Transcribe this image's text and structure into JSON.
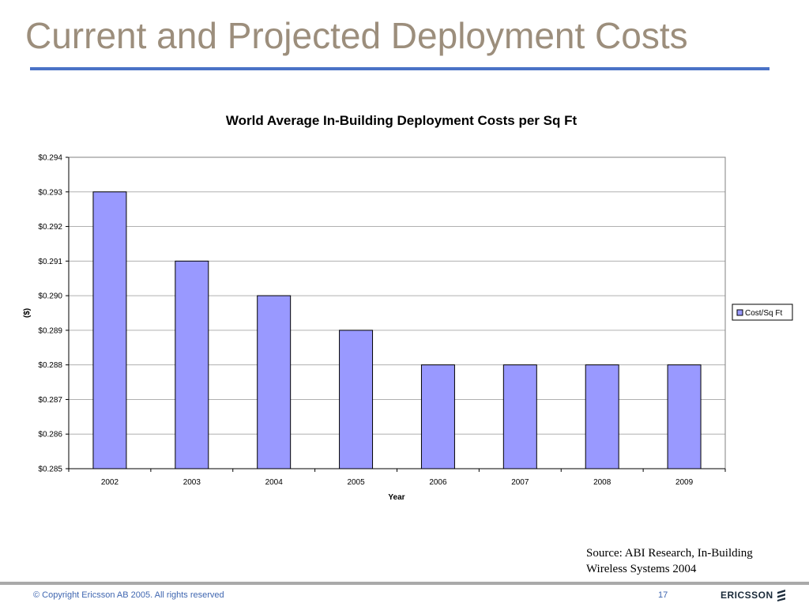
{
  "slide": {
    "title": "Current and Projected Deployment Costs",
    "source_note": "Source: ABI Research, In-Building Wireless Systems 2004"
  },
  "chart_data": {
    "type": "bar",
    "title": "World Average In-Building Deployment Costs per Sq Ft",
    "xlabel": "Year",
    "ylabel": "($)",
    "categories": [
      "2002",
      "2003",
      "2004",
      "2005",
      "2006",
      "2007",
      "2008",
      "2009"
    ],
    "series": [
      {
        "name": "Cost/Sq Ft",
        "values": [
          0.293,
          0.291,
          0.29,
          0.289,
          0.288,
          0.288,
          0.288,
          0.288
        ]
      }
    ],
    "ylim": [
      0.285,
      0.294
    ],
    "yticks": [
      0.285,
      0.286,
      0.287,
      0.288,
      0.289,
      0.29,
      0.291,
      0.292,
      0.293,
      0.294
    ],
    "ytick_labels": [
      "$0.285",
      "$0.286",
      "$0.287",
      "$0.288",
      "$0.289",
      "$0.290",
      "$0.291",
      "$0.292",
      "$0.293",
      "$0.294"
    ],
    "grid": true,
    "legend_position": "right",
    "bar_color": "#9999ff"
  },
  "footer": {
    "copyright": "© Copyright Ericsson AB 2005. All rights reserved",
    "page_number": "17",
    "logo_text": "ERICSSON"
  }
}
